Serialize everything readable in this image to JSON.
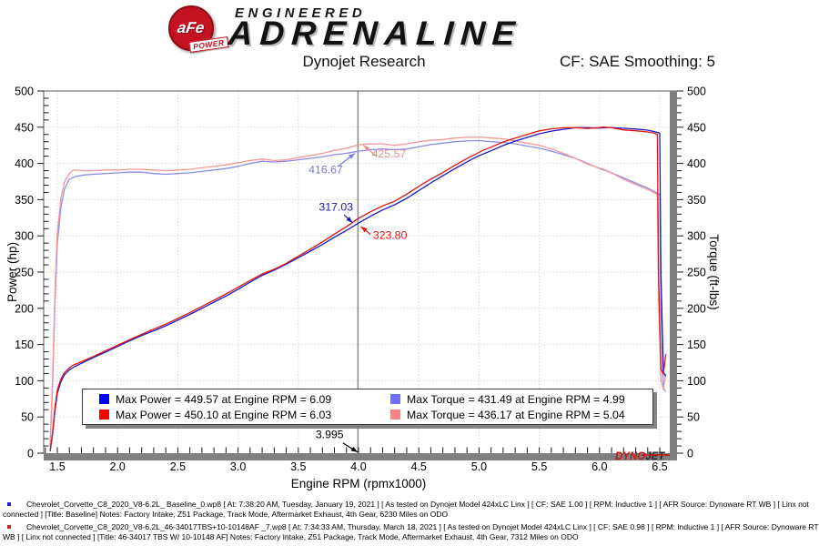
{
  "header": {
    "brand_badge_top": "aFe",
    "brand_badge_bottom": "POWER",
    "brand_small": "ENGINEERED",
    "brand_large": "ADRENALINE",
    "title": "Dynojet Research",
    "smoothing": "CF: SAE Smoothing: 5"
  },
  "chart_data": {
    "type": "line",
    "title": "Dynojet Research",
    "xlabel": "Engine RPM (rpmx1000)",
    "ylabel_left": "Power (hp)",
    "ylabel_right": "Torque (ft-lbs)",
    "xlim": [
      1.39,
      6.58
    ],
    "ylim_left": [
      0,
      500
    ],
    "ylim_right": [
      0,
      500
    ],
    "x_ticks": [
      1.5,
      2,
      2.5,
      3,
      3.5,
      4,
      4.5,
      5,
      5.5,
      6,
      6.5
    ],
    "y_ticks": [
      0,
      50,
      100,
      150,
      200,
      250,
      300,
      350,
      400,
      450,
      500
    ],
    "grid": "dotted",
    "cursor_rpm": 3.995,
    "series": [
      {
        "name": "Torque Baseline",
        "axis": "right",
        "units": "ft-lbs",
        "color": "#8c8ce6",
        "points": [
          [
            1.44,
            10
          ],
          [
            1.46,
            90
          ],
          [
            1.48,
            210
          ],
          [
            1.5,
            290
          ],
          [
            1.53,
            340
          ],
          [
            1.56,
            365
          ],
          [
            1.6,
            378
          ],
          [
            1.65,
            382
          ],
          [
            1.72,
            384
          ],
          [
            1.8,
            385
          ],
          [
            1.9,
            386
          ],
          [
            2,
            387
          ],
          [
            2.1,
            388
          ],
          [
            2.2,
            388
          ],
          [
            2.3,
            386
          ],
          [
            2.4,
            385
          ],
          [
            2.5,
            386
          ],
          [
            2.6,
            387
          ],
          [
            2.7,
            389
          ],
          [
            2.8,
            391
          ],
          [
            2.9,
            393
          ],
          [
            3,
            396
          ],
          [
            3.1,
            400
          ],
          [
            3.2,
            403
          ],
          [
            3.3,
            402
          ],
          [
            3.4,
            403
          ],
          [
            3.5,
            405
          ],
          [
            3.6,
            407
          ],
          [
            3.7,
            409
          ],
          [
            3.8,
            412
          ],
          [
            3.9,
            414
          ],
          [
            3.995,
            416.67
          ],
          [
            4.1,
            419
          ],
          [
            4.2,
            420
          ],
          [
            4.3,
            419
          ],
          [
            4.4,
            420
          ],
          [
            4.5,
            423
          ],
          [
            4.6,
            426
          ],
          [
            4.7,
            428
          ],
          [
            4.8,
            430
          ],
          [
            4.9,
            431
          ],
          [
            4.99,
            431.49
          ],
          [
            5.1,
            430
          ],
          [
            5.2,
            429
          ],
          [
            5.3,
            427
          ],
          [
            5.4,
            424
          ],
          [
            5.5,
            421
          ],
          [
            5.6,
            417
          ],
          [
            5.7,
            412
          ],
          [
            5.8,
            407
          ],
          [
            5.9,
            400
          ],
          [
            6,
            393
          ],
          [
            6.09,
            387.7
          ],
          [
            6.2,
            380
          ],
          [
            6.3,
            373
          ],
          [
            6.4,
            366
          ],
          [
            6.47,
            360
          ],
          [
            6.5,
            357
          ],
          [
            6.51,
            200
          ],
          [
            6.53,
            90
          ],
          [
            6.55,
            85
          ]
        ]
      },
      {
        "name": "Torque 46-34017 TBS W/ 10-10148 AF",
        "axis": "right",
        "units": "ft-lbs",
        "color": "#f29898",
        "points": [
          [
            1.44,
            12
          ],
          [
            1.46,
            100
          ],
          [
            1.48,
            225
          ],
          [
            1.5,
            305
          ],
          [
            1.53,
            352
          ],
          [
            1.56,
            375
          ],
          [
            1.6,
            386
          ],
          [
            1.63,
            391
          ],
          [
            1.72,
            390
          ],
          [
            1.8,
            390
          ],
          [
            1.9,
            391
          ],
          [
            2,
            391
          ],
          [
            2.1,
            392
          ],
          [
            2.2,
            392
          ],
          [
            2.3,
            391
          ],
          [
            2.4,
            390
          ],
          [
            2.5,
            391
          ],
          [
            2.6,
            392
          ],
          [
            2.7,
            394
          ],
          [
            2.8,
            396
          ],
          [
            2.9,
            398
          ],
          [
            3,
            401
          ],
          [
            3.1,
            404
          ],
          [
            3.2,
            406
          ],
          [
            3.3,
            404
          ],
          [
            3.4,
            405
          ],
          [
            3.5,
            408
          ],
          [
            3.6,
            411
          ],
          [
            3.7,
            414
          ],
          [
            3.8,
            418
          ],
          [
            3.9,
            421
          ],
          [
            3.995,
            425.57
          ],
          [
            4.1,
            427
          ],
          [
            4.2,
            427
          ],
          [
            4.3,
            425
          ],
          [
            4.4,
            427
          ],
          [
            4.5,
            430
          ],
          [
            4.6,
            432
          ],
          [
            4.7,
            433
          ],
          [
            4.8,
            435
          ],
          [
            4.9,
            436
          ],
          [
            5.04,
            436.17
          ],
          [
            5.1,
            435
          ],
          [
            5.2,
            434
          ],
          [
            5.3,
            431
          ],
          [
            5.4,
            428
          ],
          [
            5.5,
            425
          ],
          [
            5.6,
            420
          ],
          [
            5.7,
            414
          ],
          [
            5.8,
            407
          ],
          [
            5.9,
            399
          ],
          [
            6,
            393.5
          ],
          [
            6.03,
            392.1
          ],
          [
            6.1,
            387
          ],
          [
            6.2,
            378
          ],
          [
            6.3,
            371
          ],
          [
            6.4,
            364
          ],
          [
            6.45,
            360
          ],
          [
            6.48,
            357
          ],
          [
            6.49,
            210
          ],
          [
            6.51,
            100
          ],
          [
            6.53,
            88
          ],
          [
            6.55,
            110
          ]
        ]
      },
      {
        "name": "Power Baseline",
        "axis": "left",
        "units": "hp",
        "color": "#1a1ac8",
        "points": [
          [
            1.44,
            2.7
          ],
          [
            1.46,
            25
          ],
          [
            1.48,
            59.2
          ],
          [
            1.5,
            82.8
          ],
          [
            1.53,
            99
          ],
          [
            1.56,
            108.4
          ],
          [
            1.6,
            115.1
          ],
          [
            1.65,
            120
          ],
          [
            1.72,
            125.7
          ],
          [
            1.8,
            132
          ],
          [
            1.9,
            139.6
          ],
          [
            2,
            147.4
          ],
          [
            2.1,
            155.1
          ],
          [
            2.2,
            162.5
          ],
          [
            2.3,
            169
          ],
          [
            2.4,
            175.9
          ],
          [
            2.5,
            183.7
          ],
          [
            2.6,
            191.6
          ],
          [
            2.7,
            200
          ],
          [
            2.8,
            208.4
          ],
          [
            2.9,
            217
          ],
          [
            3,
            226.2
          ],
          [
            3.1,
            236.1
          ],
          [
            3.2,
            245.5
          ],
          [
            3.3,
            252.6
          ],
          [
            3.4,
            260.9
          ],
          [
            3.5,
            269.9
          ],
          [
            3.6,
            278.9
          ],
          [
            3.7,
            288.1
          ],
          [
            3.8,
            298.1
          ],
          [
            3.9,
            307.5
          ],
          [
            3.995,
            317.03
          ],
          [
            4.1,
            327.1
          ],
          [
            4.2,
            335.8
          ],
          [
            4.3,
            343
          ],
          [
            4.4,
            351.9
          ],
          [
            4.5,
            362.5
          ],
          [
            4.6,
            373.1
          ],
          [
            4.7,
            383
          ],
          [
            4.8,
            392.9
          ],
          [
            4.9,
            402.1
          ],
          [
            4.99,
            410
          ],
          [
            5.1,
            417.5
          ],
          [
            5.2,
            424.8
          ],
          [
            5.3,
            430.9
          ],
          [
            5.4,
            435.9
          ],
          [
            5.5,
            440.9
          ],
          [
            5.6,
            444.6
          ],
          [
            5.7,
            447.1
          ],
          [
            5.8,
            449.4
          ],
          [
            5.9,
            449.4
          ],
          [
            6,
            448.9
          ],
          [
            6.09,
            449.57
          ],
          [
            6.2,
            448.5
          ],
          [
            6.3,
            447.5
          ],
          [
            6.4,
            446
          ],
          [
            6.47,
            443.4
          ],
          [
            6.5,
            441.8
          ],
          [
            6.51,
            248
          ],
          [
            6.53,
            112
          ],
          [
            6.55,
            106
          ]
        ]
      },
      {
        "name": "Power 46-34017 TBS W/ 10-10148 AF",
        "axis": "left",
        "units": "hp",
        "color": "#e01414",
        "points": [
          [
            1.44,
            3.3
          ],
          [
            1.46,
            27.8
          ],
          [
            1.48,
            63.4
          ],
          [
            1.5,
            87.1
          ],
          [
            1.53,
            102.6
          ],
          [
            1.56,
            111.4
          ],
          [
            1.6,
            117.6
          ],
          [
            1.63,
            121.3
          ],
          [
            1.72,
            127.7
          ],
          [
            1.8,
            133.6
          ],
          [
            1.9,
            141.4
          ],
          [
            2,
            148.9
          ],
          [
            2.1,
            156.7
          ],
          [
            2.2,
            164.2
          ],
          [
            2.3,
            171.2
          ],
          [
            2.4,
            178.2
          ],
          [
            2.5,
            186.1
          ],
          [
            2.6,
            194
          ],
          [
            2.7,
            202.6
          ],
          [
            2.8,
            211.1
          ],
          [
            2.9,
            219.8
          ],
          [
            3,
            229
          ],
          [
            3.1,
            238.4
          ],
          [
            3.2,
            247.4
          ],
          [
            3.3,
            253.9
          ],
          [
            3.4,
            262.2
          ],
          [
            3.5,
            271.9
          ],
          [
            3.6,
            281.7
          ],
          [
            3.7,
            291.7
          ],
          [
            3.8,
            302.5
          ],
          [
            3.9,
            312.7
          ],
          [
            3.995,
            323.8
          ],
          [
            4.1,
            333.3
          ],
          [
            4.2,
            341.4
          ],
          [
            4.3,
            347.9
          ],
          [
            4.4,
            357.7
          ],
          [
            4.5,
            368.4
          ],
          [
            4.6,
            378.4
          ],
          [
            4.7,
            387.5
          ],
          [
            4.8,
            397.5
          ],
          [
            4.9,
            406.8
          ],
          [
            5.04,
            418.6
          ],
          [
            5.1,
            422.4
          ],
          [
            5.2,
            429.7
          ],
          [
            5.3,
            434.9
          ],
          [
            5.4,
            440
          ],
          [
            5.5,
            445
          ],
          [
            5.6,
            447.8
          ],
          [
            5.7,
            449.3
          ],
          [
            5.8,
            449.4
          ],
          [
            5.9,
            448.2
          ],
          [
            6,
            449.5
          ],
          [
            6.03,
            450.1
          ],
          [
            6.1,
            449.4
          ],
          [
            6.2,
            446.2
          ],
          [
            6.3,
            445.1
          ],
          [
            6.4,
            443.5
          ],
          [
            6.45,
            442.1
          ],
          [
            6.48,
            440.3
          ],
          [
            6.49,
            243.8
          ],
          [
            6.51,
            115.9
          ],
          [
            6.53,
            109.4
          ],
          [
            6.55,
            136.7
          ]
        ]
      }
    ],
    "annotations": [
      {
        "text": "416.67",
        "color": "#7b7bd8",
        "tip": {
          "rpm": 3.97,
          "value": 414
        },
        "from": {
          "rpm": 3.83,
          "value": 396
        },
        "label": {
          "rpm": 3.87,
          "value": 386,
          "anchor": "end"
        }
      },
      {
        "text": "425.57",
        "color": "#ef8a8a",
        "tip": {
          "rpm": 4.04,
          "value": 425
        },
        "from": {
          "rpm": 4.15,
          "value": 410
        },
        "label": {
          "rpm": 4.11,
          "value": 408,
          "anchor": "start"
        }
      },
      {
        "text": "317.03",
        "color": "#1818c0",
        "tip": {
          "rpm": 3.95,
          "value": 318
        },
        "from": {
          "rpm": 3.88,
          "value": 329
        },
        "label": {
          "rpm": 3.955,
          "value": 335,
          "anchor": "end"
        }
      },
      {
        "text": "323.80",
        "color": "#e01010",
        "tip": {
          "rpm": 4.02,
          "value": 313
        },
        "from": {
          "rpm": 4.1,
          "value": 302
        },
        "label": {
          "rpm": 4.12,
          "value": 296,
          "anchor": "start"
        }
      },
      {
        "text": "3.995",
        "color": "#000000",
        "tip": {
          "rpm": 3.992,
          "value": 1.5
        },
        "from": {
          "rpm": 3.87,
          "value": 14
        },
        "label": {
          "rpm": 3.76,
          "value": 21,
          "anchor": "middle"
        }
      }
    ],
    "legend": {
      "rows": [
        [
          {
            "color": "#0000ff",
            "label": "Max Power = 449.57 at Engine RPM = 6.09"
          },
          {
            "color": "#6e6eff",
            "label": "Max Torque = 431.49 at Engine RPM = 4.99"
          }
        ],
        [
          {
            "color": "#ff0000",
            "label": "Max Power = 450.10 at Engine RPM = 6.03"
          },
          {
            "color": "#ff8080",
            "label": "Max Torque = 436.17 at Engine RPM = 5.04"
          }
        ]
      ]
    },
    "watermark": {
      "dyno": "DYNO",
      "jet": "JET"
    }
  },
  "footer": {
    "runs": [
      {
        "bullet_color": "#2222cc",
        "line1": "Chevrolet_Corvette_C8_2020_V8-6.2L_ Baseline_0.wp8 [ At: 7:38:20 AM, Tuesday, January 19, 2021 ] [ As tested on Dynojet Model 424xLC Linx ] [ CF: SAE 1.00 ] [ RPM: Inductive 1 ] [ AFR Source: Dynoware RT WB ] [ Linx not",
        "line2": "connected ] [Title: Baseline]  Notes: Factory Intake, Z51 Package, Track Mode, Aftermarket Exhaust, 4th Gear, 6230 Miles on ODO"
      },
      {
        "bullet_color": "#cc2222",
        "line1": "Chevrolet_Corvette_C8_2020_V8-6.2L_46-34017TBS+10-10148AF _7.wp8 [ At: 7:34:33 AM, Thursday, March 18, 2021 ] [ As tested on Dynojet Model 424xLC Linx ] [ CF: SAE 0.98 ] [ RPM: Inductive 1 ] [ AFR Source: Dynoware RT",
        "line2": "WB ] [ Linx not connected ] [Title: 46-34017 TBS W/ 10-10148 AF]  Notes: Factory Intake, Z51 Package, Track Mode, Aftermarket Exhaust, 4th Gear, 7312 Miles on ODO"
      }
    ]
  }
}
